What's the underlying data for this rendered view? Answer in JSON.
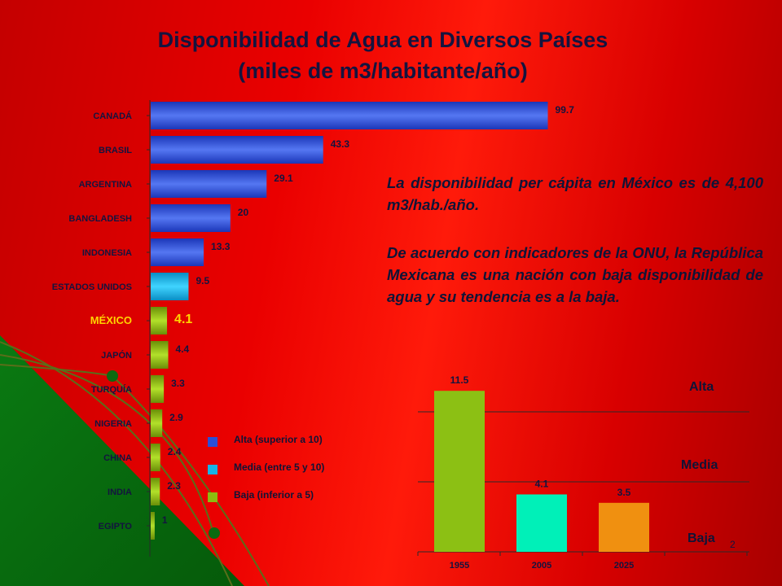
{
  "title_line1": "Disponibilidad de Agua en Diversos Países",
  "title_line2": "(miles de m3/habitante/año)",
  "description": {
    "p1": "La disponibilidad per cápita en México es de 4,100 m3/hab./año.",
    "p2": "De acuerdo con indicadores de la ONU, la República Mexicana es una nación con  baja disponibilidad de agua y su tendencia es a la baja."
  },
  "legend": [
    {
      "label": "Alta (superior a 10)",
      "color": "#2a4fd8",
      "class": "alta"
    },
    {
      "label": "Media (entre 5 y 10)",
      "color": "#16b4e8",
      "class": "media"
    },
    {
      "label": "Baja (inferior a 5)",
      "color": "#8cbc10",
      "class": "baja"
    }
  ],
  "zones": {
    "alta": "Alta",
    "media": "Media",
    "baja": "Baja"
  },
  "slide_number": "2",
  "colors": {
    "alta": "#2a4fd8",
    "media": "#16b4e8",
    "baja": "#8cbc10",
    "highlight_label": "#ffd400",
    "background_red": "#e00000",
    "background_green": "#0c6c10",
    "text_dark": "#14143f"
  },
  "chart_data": [
    {
      "type": "bar",
      "orientation": "horizontal",
      "categories": [
        "CANADÁ",
        "BRASIL",
        "ARGENTINA",
        "BANGLADESH",
        "INDONESIA",
        "ESTADOS UNIDOS",
        "MÉXICO",
        "JAPÓN",
        "TURQUÍA",
        "NIGERIA",
        "CHINA",
        "INDIA",
        "EGIPTO"
      ],
      "values": [
        99.7,
        43.3,
        29.1,
        20,
        13.3,
        9.5,
        4.1,
        4.4,
        3.3,
        2.9,
        2.4,
        2.3,
        1
      ],
      "value_labels": [
        "99.7",
        "43.3",
        "29.1",
        "20",
        "13.3",
        "9.5",
        "4.1",
        "4.4",
        "3.3",
        "2.9",
        "2.4",
        "2.3",
        "1"
      ],
      "classes": [
        "alta",
        "alta",
        "alta",
        "alta",
        "alta",
        "media",
        "baja",
        "baja",
        "baja",
        "baja",
        "baja",
        "baja",
        "baja"
      ],
      "highlight": "MÉXICO",
      "xlim": [
        0,
        100
      ]
    },
    {
      "type": "bar",
      "categories": [
        "1955",
        "2005",
        "2025"
      ],
      "values": [
        11.5,
        4.1,
        3.5
      ],
      "value_labels": [
        "11.5",
        "4.1",
        "3.5"
      ],
      "bar_colors": [
        "#8cc014",
        "#00f0b8",
        "#f09010"
      ],
      "thresholds": [
        10,
        5
      ],
      "ylim": [
        0,
        12.5
      ]
    }
  ]
}
